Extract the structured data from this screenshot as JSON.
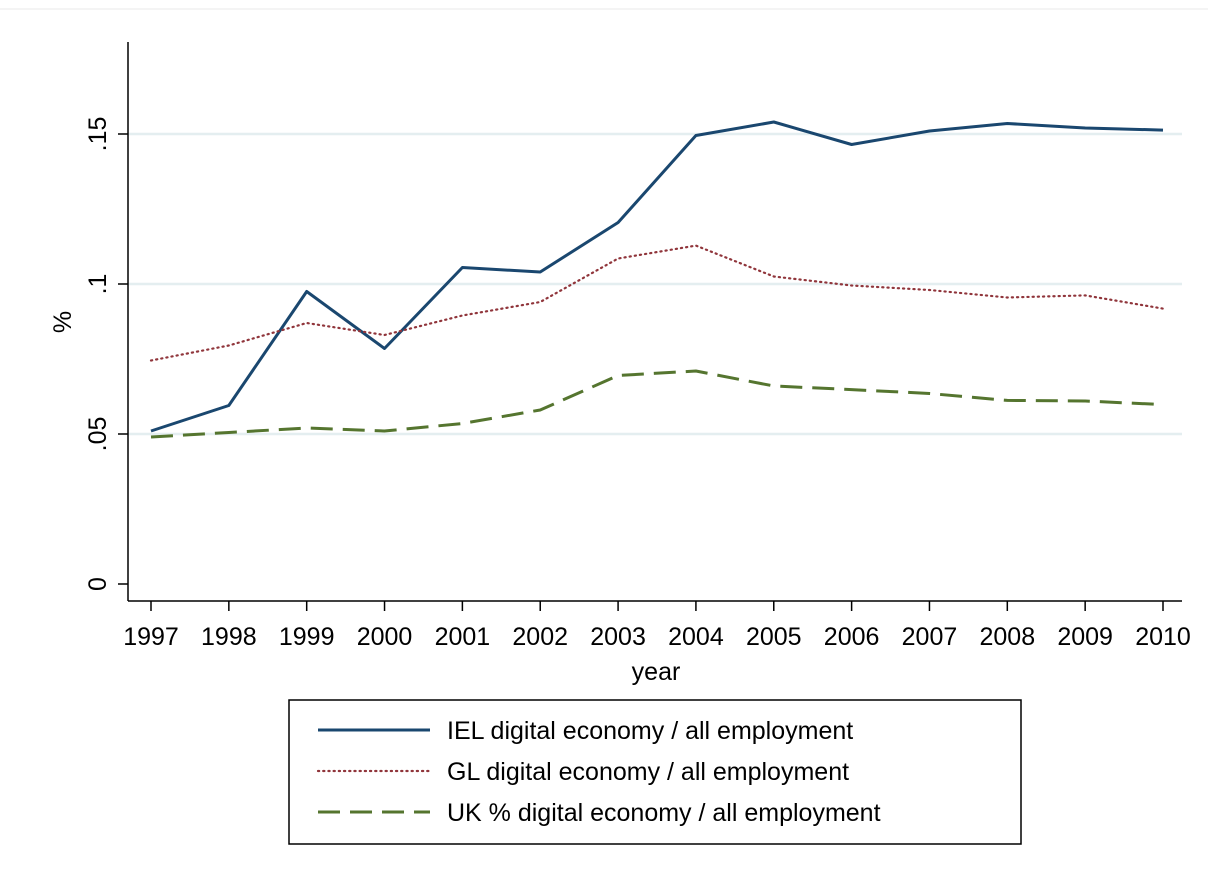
{
  "chart_data": {
    "type": "line",
    "title": "",
    "xlabel": "year",
    "ylabel": "%",
    "x": [
      1997,
      1998,
      1999,
      2000,
      2001,
      2002,
      2003,
      2004,
      2005,
      2006,
      2007,
      2008,
      2009,
      2010
    ],
    "x_tick_labels": [
      "1997",
      "1998",
      "1999",
      "2000",
      "2001",
      "2002",
      "2003",
      "2004",
      "2005",
      "2006",
      "2007",
      "2008",
      "2009",
      "2010"
    ],
    "y_ticks": [
      0,
      0.05,
      0.1,
      0.15
    ],
    "y_tick_labels": [
      "0",
      ".05",
      ".1",
      ".15"
    ],
    "ylim": [
      0,
      0.18
    ],
    "grid": true,
    "legend_position": "bottom",
    "series": [
      {
        "name": "IEL digital economy / all employment",
        "color": "#1a476f",
        "style": "solid",
        "values": [
          0.051,
          0.0595,
          0.0975,
          0.0785,
          0.1055,
          0.104,
          0.1205,
          0.1495,
          0.154,
          0.1465,
          0.151,
          0.1535,
          0.152,
          0.1513
        ]
      },
      {
        "name": "GL digital economy / all employment",
        "color": "#90353b",
        "style": "dotted",
        "values": [
          0.0745,
          0.0795,
          0.087,
          0.083,
          0.0895,
          0.094,
          0.1085,
          0.1128,
          0.1025,
          0.0995,
          0.098,
          0.0955,
          0.0962,
          0.0918
        ]
      },
      {
        "name": "UK % digital economy / all employment",
        "color": "#55752f",
        "style": "dashed",
        "values": [
          0.049,
          0.0505,
          0.052,
          0.051,
          0.0535,
          0.058,
          0.0695,
          0.071,
          0.066,
          0.0648,
          0.0635,
          0.0612,
          0.061,
          0.0598
        ]
      }
    ]
  }
}
